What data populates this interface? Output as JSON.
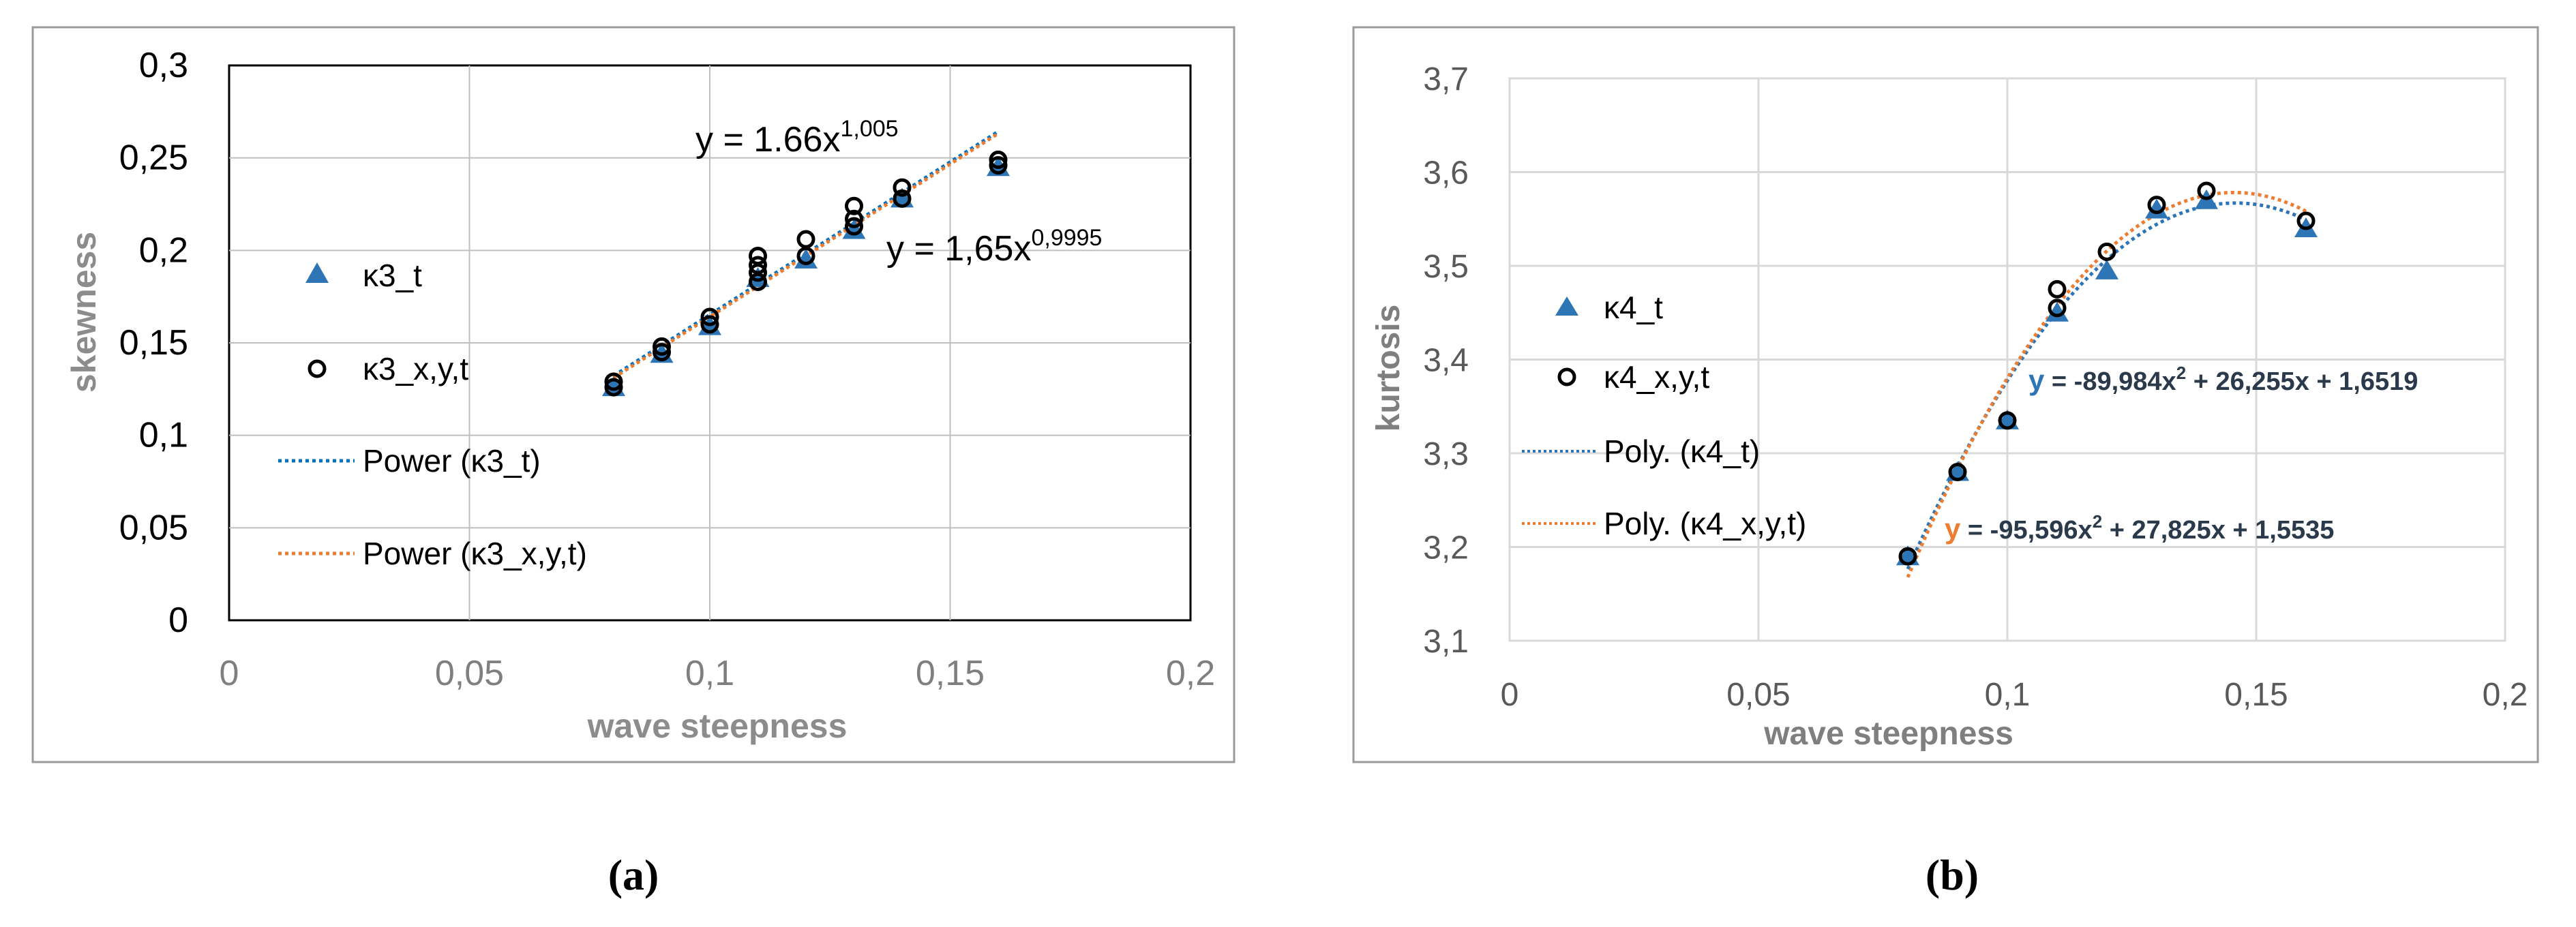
{
  "chart_data": [
    {
      "panel_label": "(a)",
      "type": "scatter",
      "xlabel": "wave steepness",
      "ylabel": "skewness",
      "xlim": [
        0,
        0.2
      ],
      "ylim": [
        0,
        0.3
      ],
      "x_ticks": [
        0,
        0.05,
        0.1,
        0.15,
        0.2
      ],
      "y_ticks": [
        0,
        0.05,
        0.1,
        0.15,
        0.2,
        0.25,
        0.3
      ],
      "x_tick_labels": [
        "0",
        "0,05",
        "0,1",
        "0,15",
        "0,2"
      ],
      "y_tick_labels": [
        "0",
        "0,05",
        "0,1",
        "0,15",
        "0,2",
        "0,25",
        "0,3"
      ],
      "grid": true,
      "legend_position": "left",
      "series": [
        {
          "name": "κ3_t",
          "marker": "triangle",
          "color": "#2E75B6",
          "points": [
            [
              0.08,
              0.126
            ],
            [
              0.09,
              0.144
            ],
            [
              0.1,
              0.159
            ],
            [
              0.11,
              0.185
            ],
            [
              0.12,
              0.195
            ],
            [
              0.13,
              0.211
            ],
            [
              0.14,
              0.228
            ],
            [
              0.16,
              0.245
            ]
          ]
        },
        {
          "name": "κ3_x,y,t",
          "marker": "circle",
          "color": "#000000",
          "points": [
            [
              0.08,
              0.126
            ],
            [
              0.08,
              0.129
            ],
            [
              0.09,
              0.145
            ],
            [
              0.09,
              0.148
            ],
            [
              0.1,
              0.16
            ],
            [
              0.1,
              0.164
            ],
            [
              0.11,
              0.183
            ],
            [
              0.11,
              0.188
            ],
            [
              0.11,
              0.192
            ],
            [
              0.11,
              0.197
            ],
            [
              0.12,
              0.197
            ],
            [
              0.12,
              0.206
            ],
            [
              0.13,
              0.213
            ],
            [
              0.13,
              0.217
            ],
            [
              0.13,
              0.224
            ],
            [
              0.14,
              0.228
            ],
            [
              0.14,
              0.234
            ],
            [
              0.16,
              0.246
            ],
            [
              0.16,
              0.249
            ]
          ]
        }
      ],
      "trendlines": [
        {
          "name": "Power (κ3_t)",
          "type": "power",
          "a": 1.65,
          "b": 0.9995,
          "x_range": [
            0.08,
            0.16
          ],
          "color": "#0070C0"
        },
        {
          "name": "Power (κ3_x,y,t)",
          "type": "power",
          "a": 1.66,
          "b": 1.005,
          "x_range": [
            0.08,
            0.16
          ],
          "color": "#ED7D31"
        }
      ],
      "annotations": [
        {
          "base": "y = 1.66x",
          "exp": "1,005"
        },
        {
          "base": "y = 1,65x",
          "exp": "0,9995"
        }
      ]
    },
    {
      "panel_label": "(b)",
      "type": "scatter",
      "xlabel": "wave steepness",
      "ylabel": "kurtosis",
      "xlim": [
        0,
        0.2
      ],
      "ylim": [
        3.1,
        3.7
      ],
      "x_ticks": [
        0,
        0.05,
        0.1,
        0.15,
        0.2
      ],
      "y_ticks": [
        3.1,
        3.2,
        3.3,
        3.4,
        3.5,
        3.6,
        3.7
      ],
      "x_tick_labels": [
        "0",
        "0,05",
        "0,1",
        "0,15",
        "0,2"
      ],
      "y_tick_labels": [
        "3,1",
        "3,2",
        "3,3",
        "3,4",
        "3,5",
        "3,6",
        "3,7"
      ],
      "grid": true,
      "legend_position": "left",
      "series": [
        {
          "name": "κ4_t",
          "marker": "triangle",
          "color": "#2E75B6",
          "points": [
            [
              0.08,
              3.19
            ],
            [
              0.09,
              3.28
            ],
            [
              0.1,
              3.335
            ],
            [
              0.11,
              3.45
            ],
            [
              0.12,
              3.495
            ],
            [
              0.13,
              3.56
            ],
            [
              0.14,
              3.57
            ],
            [
              0.16,
              3.54
            ]
          ]
        },
        {
          "name": "κ4_x,y,t",
          "marker": "circle",
          "color": "#000000",
          "points": [
            [
              0.08,
              3.19
            ],
            [
              0.09,
              3.28
            ],
            [
              0.1,
              3.335
            ],
            [
              0.11,
              3.455
            ],
            [
              0.11,
              3.475
            ],
            [
              0.12,
              3.515
            ],
            [
              0.13,
              3.565
            ],
            [
              0.14,
              3.58
            ],
            [
              0.16,
              3.548
            ]
          ]
        }
      ],
      "trendlines": [
        {
          "name": "Poly. (κ4_t)",
          "type": "poly2",
          "coef": [
            -89.984,
            26.255,
            1.6519
          ],
          "x_range": [
            0.08,
            0.16
          ],
          "color": "#2E75B6"
        },
        {
          "name": "Poly. (κ4_x,y,t)",
          "type": "poly2",
          "coef": [
            -95.596,
            27.825,
            1.5535
          ],
          "x_range": [
            0.08,
            0.16
          ],
          "color": "#ED7D31"
        }
      ],
      "annotations": [
        {
          "prefix": "y",
          "base": " = -89,984x",
          "exp": "2",
          "rest": " + 26,255x + 1,6519",
          "prefix_color": "#2E75B6"
        },
        {
          "prefix": "y",
          "base": " = -95,596x",
          "exp": "2",
          "rest": " + 27,825x + 1,5535",
          "prefix_color": "#ED7D31"
        }
      ]
    }
  ]
}
